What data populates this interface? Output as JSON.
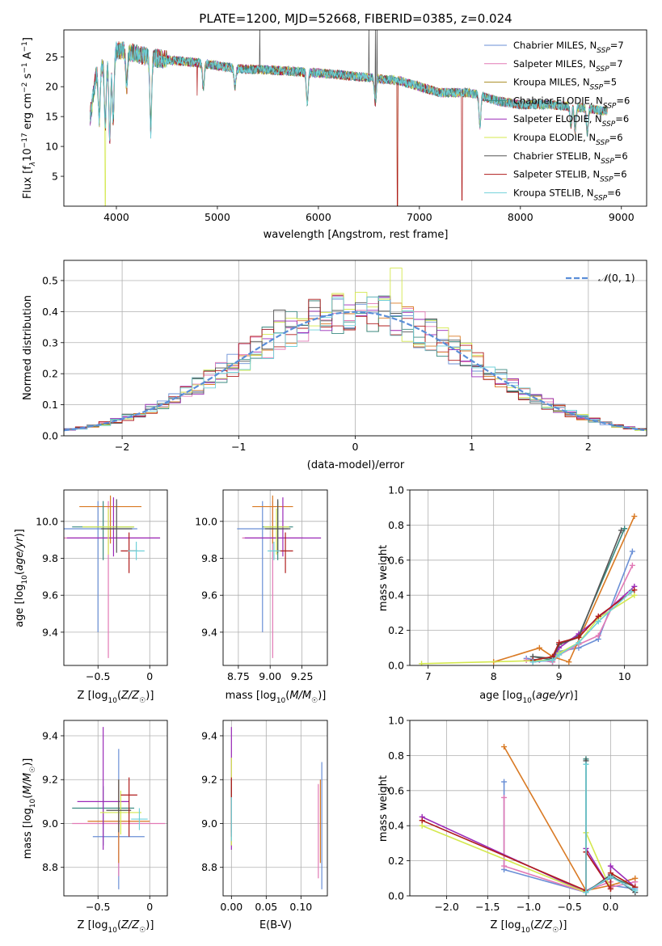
{
  "chart_data": [
    {
      "id": "spectrum",
      "type": "line",
      "title": "PLATE=1200, MJD=52668, FIBERID=0385, z=0.024",
      "xlabel": "wavelength [Angstrom, rest frame]",
      "ylabel": "Flux [f$_\\lambda$10$^{-17}$ erg cm$^{-2}$ s$^{-1}$ A$^{-1}$]",
      "ylabel_parts": [
        "Flux [f",
        "λ",
        "10",
        "−17",
        " erg cm",
        "−2",
        " s",
        "−1",
        " A",
        "−1",
        "]"
      ],
      "xlim": [
        3480,
        9250
      ],
      "ylim": [
        0,
        29.5
      ],
      "xticks": [
        4000,
        5000,
        6000,
        7000,
        8000,
        9000
      ],
      "yticks": [
        5,
        10,
        15,
        20,
        25
      ],
      "legend_loc": "upper right",
      "series": [
        {
          "name_pre": "Chabrier MILES, N",
          "name_sub": "SSP",
          "name_post": "=7",
          "color": "#6a8fd6"
        },
        {
          "name_pre": "Salpeter MILES, N",
          "name_sub": "SSP",
          "name_post": "=7",
          "color": "#e27ab6"
        },
        {
          "name_pre": "Kroupa MILES, N",
          "name_sub": "SSP",
          "name_post": "=5",
          "color": "#a88c20"
        },
        {
          "name_pre": "Chabrier ELODIE, N",
          "name_sub": "SSP",
          "name_post": "=6",
          "color": "#3a8a80"
        },
        {
          "name_pre": "Salpeter ELODIE, N",
          "name_sub": "SSP",
          "name_post": "=6",
          "color": "#9b2ab8"
        },
        {
          "name_pre": "Kroupa ELODIE, N",
          "name_sub": "SSP",
          "name_post": "=6",
          "color": "#d4e84e"
        },
        {
          "name_pre": "Chabrier STELIB, N",
          "name_sub": "SSP",
          "name_post": "=6",
          "color": "#555555"
        },
        {
          "name_pre": "Salpeter STELIB, N",
          "name_sub": "SSP",
          "name_post": "=6",
          "color": "#b01c1c"
        },
        {
          "name_pre": "Kroupa STELIB, N",
          "name_sub": "SSP",
          "name_post": "=6",
          "color": "#6fd0d8"
        }
      ],
      "continuum": {
        "x": [
          3740,
          3800,
          3900,
          4000,
          4100,
          4300,
          4500,
          4800,
          5000,
          5200,
          5500,
          5800,
          6000,
          6200,
          6500,
          6800,
          7000,
          7200,
          7500,
          7800,
          8000,
          8300,
          8600,
          8800
        ],
        "y": [
          15,
          22,
          24,
          26,
          26,
          25,
          24.5,
          24,
          23.5,
          23,
          22.8,
          22.5,
          22.3,
          22,
          21.5,
          21,
          20,
          19,
          19,
          17.5,
          17,
          17,
          16.5,
          16
        ]
      }
    },
    {
      "id": "residuals",
      "type": "histogram",
      "xlabel": "(data-model)/error",
      "ylabel": "Normed distribution",
      "xlim": [
        -2.5,
        2.5
      ],
      "ylim": [
        0,
        0.565
      ],
      "xticks": [
        -2,
        -1,
        0,
        1,
        2
      ],
      "yticks": [
        0.0,
        0.1,
        0.2,
        0.3,
        0.4,
        0.5
      ],
      "grid": true,
      "legend_loc": "upper right",
      "legend_label": "N(0, 1)",
      "legend_label_parts": [
        "𝒩",
        "(0, 1)"
      ],
      "gaussian_color": "#5a8ed8",
      "bin_width": 0.1
    },
    {
      "id": "age-vs-Z",
      "type": "scatter",
      "xlabel": "Z [log10(Z/Z☉)]",
      "xlabel_parts": [
        "Z [log",
        "10",
        "(",
        "Z/Z",
        "☉",
        ")]"
      ],
      "ylabel": "age  [log10(age/yr)]",
      "ylabel_parts": [
        "age  [log",
        "10",
        "(",
        "age/yr",
        ")]"
      ],
      "xlim": [
        -0.83,
        0.17
      ],
      "ylim": [
        9.22,
        10.17
      ],
      "xticks": [
        -0.5,
        0.0
      ],
      "yticks": [
        9.4,
        9.6,
        9.8,
        10.0
      ],
      "grid": true,
      "points": [
        {
          "color": "#6a8fd6",
          "x": -0.5,
          "xerr": 0.38,
          "y": 9.96,
          "yerr_lo": 0.56,
          "yerr_hi": 0.15
        },
        {
          "color": "#e27ab6",
          "x": -0.4,
          "xerr": 0.5,
          "y": 9.91,
          "yerr_lo": 0.65,
          "yerr_hi": 0.2
        },
        {
          "color": "#d97a24",
          "x": -0.38,
          "xerr": 0.3,
          "y": 10.08,
          "yerr_lo": 0.2,
          "yerr_hi": 0.06
        },
        {
          "color": "#3a8a80",
          "x": -0.45,
          "xerr": 0.3,
          "y": 9.97,
          "yerr_lo": 0.18,
          "yerr_hi": 0.14
        },
        {
          "color": "#9b2ab8",
          "x": -0.35,
          "xerr": 0.45,
          "y": 9.91,
          "yerr_lo": 0.1,
          "yerr_hi": 0.22
        },
        {
          "color": "#d4e84e",
          "x": -0.4,
          "xerr": 0.25,
          "y": 9.97,
          "yerr_lo": 0.15,
          "yerr_hi": 0.1
        },
        {
          "color": "#555555",
          "x": -0.32,
          "xerr": 0.15,
          "y": 9.96,
          "yerr_lo": 0.13,
          "yerr_hi": 0.16
        },
        {
          "color": "#b01c1c",
          "x": -0.2,
          "xerr": 0.08,
          "y": 9.84,
          "yerr_lo": 0.12,
          "yerr_hi": 0.1
        },
        {
          "color": "#6fd0d8",
          "x": -0.13,
          "xerr": 0.08,
          "y": 9.84,
          "yerr_lo": 0.05,
          "yerr_hi": 0.05
        }
      ]
    },
    {
      "id": "age-vs-mass",
      "type": "scatter",
      "xlabel": "mass [log10(M/M☉)]",
      "xlabel_parts": [
        "mass [log",
        "10",
        "(",
        "M/M",
        "☉",
        ")]"
      ],
      "xlim": [
        8.63,
        9.45
      ],
      "ylim": [
        9.22,
        10.17
      ],
      "xticks": [
        8.75,
        9.0,
        9.25
      ],
      "yticks": [
        9.4,
        9.6,
        9.8,
        10.0
      ],
      "grid": true,
      "points": [
        {
          "color": "#6a8fd6",
          "x": 8.94,
          "xerr": 0.2,
          "y": 9.96,
          "yerr_lo": 0.56,
          "yerr_hi": 0.15
        },
        {
          "color": "#e27ab6",
          "x": 9.02,
          "xerr": 0.24,
          "y": 9.91,
          "yerr_lo": 0.65,
          "yerr_hi": 0.2
        },
        {
          "color": "#d97a24",
          "x": 9.02,
          "xerr": 0.16,
          "y": 10.08,
          "yerr_lo": 0.2,
          "yerr_hi": 0.06
        },
        {
          "color": "#3a8a80",
          "x": 9.06,
          "xerr": 0.12,
          "y": 9.97,
          "yerr_lo": 0.18,
          "yerr_hi": 0.14
        },
        {
          "color": "#9b2ab8",
          "x": 9.1,
          "xerr": 0.3,
          "y": 9.91,
          "yerr_lo": 0.1,
          "yerr_hi": 0.22
        },
        {
          "color": "#d4e84e",
          "x": 9.05,
          "xerr": 0.1,
          "y": 9.97,
          "yerr_lo": 0.15,
          "yerr_hi": 0.1
        },
        {
          "color": "#555555",
          "x": 9.06,
          "xerr": 0.1,
          "y": 9.96,
          "yerr_lo": 0.13,
          "yerr_hi": 0.16
        },
        {
          "color": "#b01c1c",
          "x": 9.12,
          "xerr": 0.06,
          "y": 9.84,
          "yerr_lo": 0.12,
          "yerr_hi": 0.1
        },
        {
          "color": "#6fd0d8",
          "x": 9.03,
          "xerr": 0.05,
          "y": 9.84,
          "yerr_lo": 0.05,
          "yerr_hi": 0.05
        }
      ]
    },
    {
      "id": "mass-weight-vs-age",
      "type": "line",
      "xlabel": "age  [log10(age/yr)]",
      "xlabel_parts": [
        "age  [log",
        "10",
        "(",
        "age/yr",
        ")]"
      ],
      "ylabel": "mass weight",
      "xlim": [
        6.72,
        10.35
      ],
      "ylim": [
        0,
        1.0
      ],
      "xticks": [
        7,
        8,
        9,
        10
      ],
      "yticks": [
        0.0,
        0.2,
        0.4,
        0.6,
        0.8,
        1.0
      ],
      "grid": true,
      "series": [
        {
          "color": "#6a8fd6",
          "x": [
            8.5,
            8.7,
            8.9,
            9.0,
            9.3,
            9.6,
            10.12
          ],
          "y": [
            0.04,
            0.03,
            0.02,
            0.08,
            0.1,
            0.15,
            0.65
          ]
        },
        {
          "color": "#e27ab6",
          "x": [
            8.5,
            8.7,
            8.9,
            9.0,
            9.3,
            9.6,
            10.12
          ],
          "y": [
            0.03,
            0.03,
            0.02,
            0.06,
            0.12,
            0.17,
            0.57
          ]
        },
        {
          "color": "#d97a24",
          "x": [
            8.0,
            8.7,
            8.9,
            9.15,
            10.15
          ],
          "y": [
            0.02,
            0.1,
            0.05,
            0.02,
            0.85
          ]
        },
        {
          "color": "#3a8a80",
          "x": [
            8.6,
            8.9,
            9.0,
            9.3,
            10.0
          ],
          "y": [
            0.05,
            0.03,
            0.12,
            0.17,
            0.78
          ]
        },
        {
          "color": "#9b2ab8",
          "x": [
            8.6,
            8.9,
            9.0,
            9.3,
            9.6,
            10.15
          ],
          "y": [
            0.02,
            0.03,
            0.1,
            0.18,
            0.27,
            0.45
          ]
        },
        {
          "color": "#d4e84e",
          "x": [
            6.9,
            8.9,
            9.0,
            9.3,
            9.6,
            10.15
          ],
          "y": [
            0.01,
            0.03,
            0.07,
            0.13,
            0.27,
            0.4
          ]
        },
        {
          "color": "#555555",
          "x": [
            8.6,
            8.9,
            9.0,
            9.3,
            9.95
          ],
          "y": [
            0.05,
            0.04,
            0.12,
            0.16,
            0.77
          ]
        },
        {
          "color": "#b01c1c",
          "x": [
            8.6,
            8.9,
            9.0,
            9.3,
            9.6,
            10.15
          ],
          "y": [
            0.03,
            0.05,
            0.13,
            0.16,
            0.28,
            0.43
          ]
        },
        {
          "color": "#6fd0d8",
          "x": [
            8.6,
            8.9,
            9.0,
            9.3,
            9.6,
            10.1
          ],
          "y": [
            0.02,
            0.03,
            0.06,
            0.13,
            0.25,
            0.42
          ]
        }
      ]
    },
    {
      "id": "mass-vs-Z",
      "type": "scatter",
      "xlabel": "Z [log10(Z/Z☉)]",
      "xlabel_parts": [
        "Z [log",
        "10",
        "(",
        "Z/Z",
        "☉",
        ")]"
      ],
      "ylabel": "mass [log10(M/M☉)]",
      "ylabel_parts": [
        "mass [log",
        "10",
        "(",
        "M/M",
        "☉",
        ")]"
      ],
      "xlim": [
        -0.83,
        0.17
      ],
      "ylim": [
        8.67,
        9.47
      ],
      "xticks": [
        -0.5,
        0.0
      ],
      "yticks": [
        8.8,
        9.0,
        9.2,
        9.4
      ],
      "grid": true,
      "points": [
        {
          "color": "#6a8fd6",
          "x": -0.3,
          "xerr": 0.25,
          "y": 8.94,
          "yerr_lo": 0.24,
          "yerr_hi": 0.4
        },
        {
          "color": "#e27ab6",
          "x": -0.3,
          "xerr": 0.45,
          "y": 9.0,
          "yerr_lo": 0.24,
          "yerr_hi": 0.18
        },
        {
          "color": "#d97a24",
          "x": -0.3,
          "xerr": 0.3,
          "y": 9.01,
          "yerr_lo": 0.19,
          "yerr_hi": 0.19
        },
        {
          "color": "#3a8a80",
          "x": -0.45,
          "xerr": 0.3,
          "y": 9.07,
          "yerr_lo": 0.17,
          "yerr_hi": 0.1
        },
        {
          "color": "#9b2ab8",
          "x": -0.45,
          "xerr": 0.25,
          "y": 9.1,
          "yerr_lo": 0.22,
          "yerr_hi": 0.34
        },
        {
          "color": "#d4e84e",
          "x": -0.28,
          "xerr": 0.2,
          "y": 9.05,
          "yerr_lo": 0.1,
          "yerr_hi": 0.1
        },
        {
          "color": "#555555",
          "x": -0.3,
          "xerr": 0.12,
          "y": 9.06,
          "yerr_lo": 0.1,
          "yerr_hi": 0.14
        },
        {
          "color": "#b01c1c",
          "x": -0.2,
          "xerr": 0.08,
          "y": 9.13,
          "yerr_lo": 0.19,
          "yerr_hi": 0.08
        },
        {
          "color": "#6fd0d8",
          "x": -0.1,
          "xerr": 0.08,
          "y": 9.02,
          "yerr_lo": 0.05,
          "yerr_hi": 0.05
        }
      ]
    },
    {
      "id": "mass-vs-ebv",
      "type": "scatter",
      "xlabel": "E(B-V)",
      "xlim": [
        -0.012,
        0.138
      ],
      "ylim": [
        8.67,
        9.47
      ],
      "xticks": [
        0.0,
        0.05,
        0.1
      ],
      "xticklabels": [
        "0.00",
        "0.05",
        "0.10"
      ],
      "yticks": [
        8.8,
        9.0,
        9.2,
        9.4
      ],
      "grid": true,
      "points": [
        {
          "color": "#6a8fd6",
          "x": 0.13,
          "y": 8.95,
          "yerr_lo": 0.25,
          "yerr_hi": 0.33
        },
        {
          "color": "#e27ab6",
          "x": 0.125,
          "y": 9.0,
          "yerr_lo": 0.25,
          "yerr_hi": 0.18
        },
        {
          "color": "#d97a24",
          "x": 0.128,
          "y": 9.01,
          "yerr_lo": 0.19,
          "yerr_hi": 0.19
        },
        {
          "color": "#3a8a80",
          "x": 0.0,
          "y": 9.07,
          "yerr_lo": 0.17,
          "yerr_hi": 0.1
        },
        {
          "color": "#9b2ab8",
          "x": 0.0,
          "y": 9.1,
          "yerr_lo": 0.22,
          "yerr_hi": 0.34
        },
        {
          "color": "#d4e84e",
          "x": 0.0,
          "y": 9.05,
          "yerr_lo": 0.15,
          "yerr_hi": 0.25
        },
        {
          "color": "#555555",
          "x": 0.0,
          "y": 9.06,
          "yerr_lo": 0.1,
          "yerr_hi": 0.14
        },
        {
          "color": "#b01c1c",
          "x": 0.0,
          "y": 9.13,
          "yerr_lo": 0.19,
          "yerr_hi": 0.08
        },
        {
          "color": "#6fd0d8",
          "x": 0.0,
          "y": 9.02,
          "yerr_lo": 0.1,
          "yerr_hi": 0.1
        }
      ]
    },
    {
      "id": "mass-weight-vs-Z",
      "type": "line",
      "xlabel": "Z [log10(Z/Z☉)]",
      "xlabel_parts": [
        "Z [log",
        "10",
        "(",
        "Z/Z",
        "☉",
        ")]"
      ],
      "ylabel": "mass weight",
      "xlim": [
        -2.45,
        0.45
      ],
      "ylim": [
        0,
        1.0
      ],
      "xticks": [
        -2.0,
        -1.5,
        -1.0,
        -0.5,
        0.0
      ],
      "xticklabels": [
        "−2.0",
        "−1.5",
        "−1.0",
        "−0.5",
        "0.0"
      ],
      "yticks": [
        0.0,
        0.2,
        0.4,
        0.6,
        0.8,
        1.0
      ],
      "grid": true,
      "series": [
        {
          "color": "#6a8fd6",
          "x": [
            -1.3,
            -1.3,
            -0.3,
            -0.3,
            0.0,
            0.0,
            0.3
          ],
          "y": [
            0.65,
            0.15,
            0.02,
            0.03,
            0.1,
            0.06,
            0.04
          ]
        },
        {
          "color": "#e27ab6",
          "x": [
            -1.3,
            -1.3,
            -0.3,
            -0.3,
            0.0,
            0.0,
            0.3
          ],
          "y": [
            0.56,
            0.17,
            0.02,
            0.03,
            0.08,
            0.05,
            0.08
          ]
        },
        {
          "color": "#d97a24",
          "x": [
            -1.3,
            -0.3,
            0.0,
            0.3
          ],
          "y": [
            0.85,
            0.03,
            0.06,
            0.1
          ]
        },
        {
          "color": "#3a8a80",
          "x": [
            -0.3,
            -0.3,
            0.0,
            0.3
          ],
          "y": [
            0.78,
            0.02,
            0.11,
            0.05
          ]
        },
        {
          "color": "#9b2ab8",
          "x": [
            -2.3,
            -0.3,
            -0.3,
            0.0,
            0.0,
            0.3
          ],
          "y": [
            0.45,
            0.02,
            0.27,
            0.04,
            0.17,
            0.05
          ]
        },
        {
          "color": "#d4e84e",
          "x": [
            -2.3,
            -0.3,
            -0.3,
            0.0,
            0.0,
            0.3
          ],
          "y": [
            0.4,
            0.02,
            0.36,
            0.04,
            0.13,
            0.05
          ]
        },
        {
          "color": "#555555",
          "x": [
            -0.3,
            -0.3,
            0.0,
            0.3
          ],
          "y": [
            0.77,
            0.02,
            0.12,
            0.02
          ]
        },
        {
          "color": "#b01c1c",
          "x": [
            -2.3,
            -0.3,
            -0.3,
            0.0,
            0.0,
            0.3
          ],
          "y": [
            0.43,
            0.03,
            0.25,
            0.04,
            0.13,
            0.05
          ]
        },
        {
          "color": "#6fd0d8",
          "x": [
            -0.3,
            -0.3,
            0.0,
            0.3
          ],
          "y": [
            0.75,
            0.02,
            0.11,
            0.03
          ]
        }
      ]
    }
  ]
}
